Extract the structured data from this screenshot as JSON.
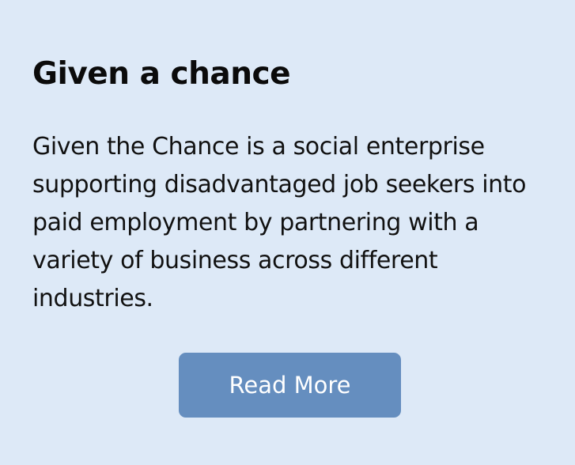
{
  "card": {
    "title": "Given a chance",
    "description": "Given the Chance is a social enterprise supporting disadvantaged job seekers into paid employment by partnering with a variety of business across different industries.",
    "button_label": "Read More"
  },
  "colors": {
    "background": "#dde9f7",
    "button": "#658ebf",
    "button_text": "#ffffff",
    "text": "#111111"
  }
}
